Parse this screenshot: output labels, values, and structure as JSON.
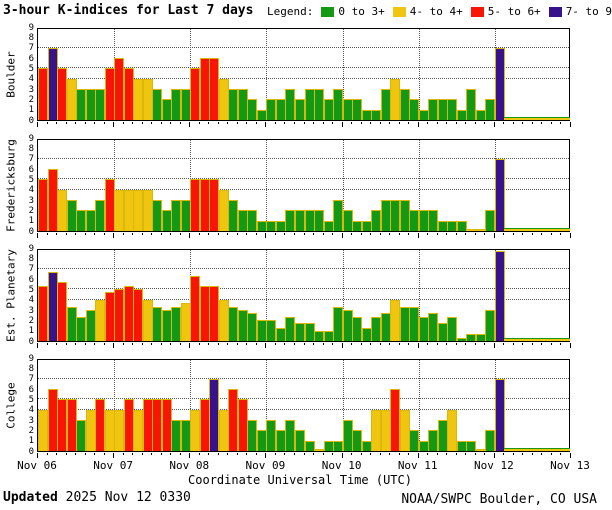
{
  "title": "3-hour K-indices for Last 7 days",
  "legend": {
    "label": "Legend:",
    "items": [
      {
        "label": "0 to 3+",
        "color": "#149914"
      },
      {
        "label": "4- to 4+",
        "color": "#efc50f"
      },
      {
        "label": "5- to 6+",
        "color": "#f81507"
      },
      {
        "label": "7- to 9",
        "color": "#38128a"
      }
    ]
  },
  "x_axis": {
    "label": "Coordinate Universal Time (UTC)",
    "day_labels": [
      "Nov 06",
      "Nov 07",
      "Nov 08",
      "Nov 09",
      "Nov 10",
      "Nov 11",
      "Nov 12",
      "Nov 13"
    ]
  },
  "y_axis": {
    "min": 0,
    "max": 9,
    "tick_step": 1,
    "dotted_levels": [
      4,
      5,
      7
    ]
  },
  "footer": {
    "updated_label": "Updated",
    "updated_value": " 2025 Nov 12 0330",
    "credit": "NOAA/SWPC Boulder, CO USA"
  },
  "chart_data": {
    "type": "bar",
    "title": "3-hour K-indices for Last 7 days",
    "interval_hours": 3,
    "bars_per_day": 8,
    "x_start": "Nov 06 00:00 UTC",
    "x_end_of_data": "Nov 12 03:00 UTC",
    "x_axis_end": "Nov 13 00:00 UTC",
    "ylim": [
      0,
      9
    ],
    "grid_levels": [
      4,
      5,
      7
    ],
    "legend_bins": [
      {
        "range": "0 to 3+",
        "color": "#149914"
      },
      {
        "range": "4- to 4+",
        "color": "#efc50f"
      },
      {
        "range": "5- to 6+",
        "color": "#f81507"
      },
      {
        "range": "7- to 9",
        "color": "#38128a"
      }
    ],
    "series": [
      {
        "name": "Boulder",
        "values": [
          5,
          7,
          5,
          4,
          3,
          3,
          3,
          5,
          6,
          5,
          4,
          4,
          3,
          2,
          3,
          3,
          5,
          6,
          6,
          4,
          3,
          3,
          2,
          1,
          2,
          2,
          3,
          2,
          3,
          3,
          2,
          3,
          2,
          2,
          1,
          1,
          3,
          4,
          3,
          2,
          1,
          2,
          2,
          2,
          1,
          3,
          1,
          2,
          7
        ]
      },
      {
        "name": "Fredericksburg",
        "values": [
          5,
          6,
          4,
          3,
          2,
          2,
          3,
          5,
          4,
          4,
          4,
          4,
          3,
          2,
          3,
          3,
          5,
          5,
          5,
          4,
          3,
          2,
          2,
          1,
          1,
          1,
          2,
          2,
          2,
          2,
          1,
          3,
          2,
          1,
          1,
          2,
          3,
          3,
          3,
          2,
          2,
          2,
          1,
          1,
          1,
          0,
          0,
          2,
          7
        ]
      },
      {
        "name": "Est. Planetary",
        "values": [
          5.3,
          6.7,
          5.7,
          3.3,
          2.3,
          3,
          4,
          4.7,
          5,
          5.3,
          5,
          4,
          3.3,
          3,
          3.3,
          3.7,
          6.3,
          5.3,
          5.3,
          4,
          3.3,
          3,
          2.7,
          2,
          2,
          1.3,
          2.3,
          1.7,
          1.7,
          1,
          1,
          3.3,
          3,
          2.3,
          1.3,
          2.3,
          2.7,
          4,
          3.3,
          3.3,
          2.3,
          2.7,
          1.7,
          2.3,
          0.3,
          0.7,
          0.7,
          3,
          8.7
        ]
      },
      {
        "name": "College",
        "values": [
          4,
          6,
          5,
          5,
          3,
          4,
          5,
          4,
          4,
          5,
          4,
          5,
          5,
          5,
          3,
          3,
          4,
          5,
          7,
          4,
          6,
          5,
          3,
          2,
          3,
          2,
          3,
          2,
          1,
          0,
          1,
          1,
          3,
          2,
          1,
          4,
          4,
          6,
          4,
          2,
          1,
          2,
          3,
          4,
          1,
          1,
          0,
          2,
          7
        ]
      }
    ],
    "no_data_strip_after_last_bar": true
  }
}
